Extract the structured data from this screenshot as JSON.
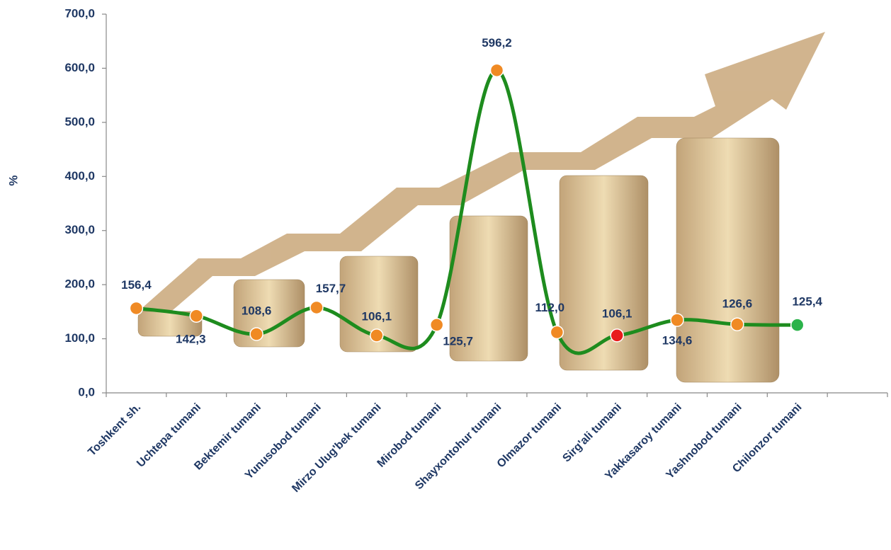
{
  "chart_data": {
    "type": "line",
    "y_label": "%",
    "categories": [
      "Toshkent sh.",
      "Uchtepa tumani",
      "Bektemir tumani",
      "Yunusobod  tumani",
      "Mirzo Ulug'bek  tumani",
      "Mirobod  tumani",
      "Shayxontohur  tumani",
      "Olmazor  tumani",
      "Sirg'ali tumani",
      "Yakkasaroy tumani",
      "Yashnobod  tumani",
      "Chilonzor  tumani",
      null
    ],
    "series": [
      {
        "name": null,
        "color": "#1e8c1e",
        "values": [
          156.4,
          142.3,
          108.6,
          157.7,
          106.1,
          125.7,
          596.2,
          112.0,
          106.1,
          134.6,
          126.6,
          125.4,
          null
        ],
        "value_labels": [
          "156,4",
          "142,3",
          "108,6",
          "157,7",
          "106,1",
          "125,7",
          "596,2",
          "112,0",
          "106,1",
          "134,6",
          "126,6",
          "125,4",
          null
        ],
        "point_colors": [
          "#f08a24",
          "#f08a24",
          "#f08a24",
          "#f08a24",
          "#f08a24",
          "#f08a24",
          "#f08a24",
          "#f08a24",
          "#e81c1c",
          "#f08a24",
          "#f08a24",
          "#2bb34a",
          null
        ]
      }
    ],
    "ylim": [
      0,
      700
    ],
    "yticks": [
      {
        "value": 0,
        "label": "0,0"
      },
      {
        "value": 100,
        "label": "100,0"
      },
      {
        "value": 200,
        "label": "200,0"
      },
      {
        "value": 300,
        "label": "300,0"
      },
      {
        "value": 400,
        "label": "400,0"
      },
      {
        "value": 500,
        "label": "500,0"
      },
      {
        "value": 600,
        "label": "600,0"
      },
      {
        "value": 700,
        "label": "700,0"
      }
    ],
    "smooth": true
  }
}
